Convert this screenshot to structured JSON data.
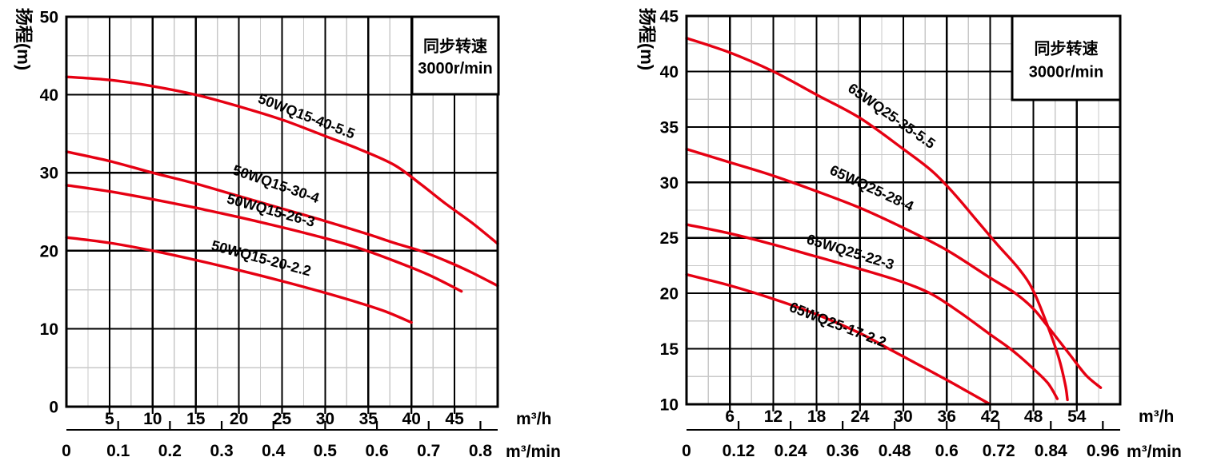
{
  "page": {
    "background": "#ffffff"
  },
  "colors": {
    "curve_red": "#e60012",
    "legend_blue": "#1578ab",
    "grid_minor": "#c8c8c8",
    "grid_major": "#000000",
    "plot_bg": "#ffffff"
  },
  "chart_data": [
    {
      "type": "line",
      "y_axis_title": "扬程(m)",
      "legend_box": {
        "line1": "同步转速",
        "line2": "3000r/min"
      },
      "x_unit": "m³/h",
      "x2_unit": "m³/min",
      "x_range": [
        0,
        50
      ],
      "y_range": [
        0,
        50
      ],
      "grid": {
        "x_major": 5,
        "x_minor": 2.5,
        "y_major": 10,
        "y_minor": 5,
        "grid_on": true
      },
      "x_tick_labels": [
        5,
        10,
        15,
        20,
        25,
        30,
        35,
        40,
        45
      ],
      "y_tick_labels": [
        50,
        40,
        30,
        20,
        10,
        0
      ],
      "x2_tick_labels": [
        "0",
        "0.1",
        "0.2",
        "0.3",
        "0.4",
        "0.5",
        "0.6",
        "0.7",
        "0.8"
      ],
      "x2_to_x_factor": 60,
      "series": [
        {
          "name": "50WQ15-40-5.5",
          "points": [
            [
              0,
              42.3
            ],
            [
              5,
              41.9
            ],
            [
              10,
              41.1
            ],
            [
              15,
              40
            ],
            [
              20,
              38.5
            ],
            [
              25,
              36.8
            ],
            [
              30,
              34.7
            ],
            [
              34,
              33
            ],
            [
              38,
              31
            ],
            [
              41,
              28.6
            ],
            [
              44,
              26
            ],
            [
              47,
              23.6
            ],
            [
              50,
              20.9
            ]
          ]
        },
        {
          "name": "50WQ15-30-4",
          "points": [
            [
              0,
              32.7
            ],
            [
              5,
              31.5
            ],
            [
              10,
              30
            ],
            [
              15,
              28.6
            ],
            [
              20,
              27
            ],
            [
              25,
              25.4
            ],
            [
              30,
              23.8
            ],
            [
              35,
              22.1
            ],
            [
              38,
              21
            ],
            [
              41,
              20
            ],
            [
              44,
              18.7
            ],
            [
              47,
              17.2
            ],
            [
              50,
              15.5
            ]
          ]
        },
        {
          "name": "50WQ15-26-3",
          "points": [
            [
              0,
              28.4
            ],
            [
              5,
              27.6
            ],
            [
              10,
              26.6
            ],
            [
              15,
              25.5
            ],
            [
              20,
              24.3
            ],
            [
              25,
              23
            ],
            [
              30,
              21.6
            ],
            [
              34,
              20.3
            ],
            [
              38,
              18.7
            ],
            [
              42,
              16.9
            ],
            [
              45.8,
              14.8
            ]
          ]
        },
        {
          "name": "50WQ15-20-2.2",
          "points": [
            [
              0,
              21.7
            ],
            [
              5,
              21
            ],
            [
              10,
              20
            ],
            [
              15,
              18.8
            ],
            [
              20,
              17.5
            ],
            [
              25,
              16.1
            ],
            [
              30,
              14.6
            ],
            [
              34,
              13.3
            ],
            [
              37,
              12.2
            ],
            [
              40,
              10.8
            ]
          ]
        }
      ]
    },
    {
      "type": "line",
      "y_axis_title": "扬程(m)",
      "legend_box": {
        "line1": "同步转速",
        "line2": "3000r/min"
      },
      "x_unit": "m³/h",
      "x2_unit": "m³/min",
      "x_range": [
        0,
        60
      ],
      "y_range": [
        10,
        45
      ],
      "grid": {
        "x_major": 6,
        "x_minor": 3,
        "y_major": 5,
        "y_minor": 2.5,
        "grid_on": true
      },
      "x_tick_labels": [
        6,
        12,
        18,
        24,
        30,
        36,
        42,
        48,
        54
      ],
      "y_tick_labels": [
        45,
        40,
        35,
        30,
        25,
        20,
        15,
        10
      ],
      "x2_tick_labels": [
        "0",
        "0.12",
        "0.24",
        "0.36",
        "0.48",
        "0.6",
        "0.72",
        "0.84",
        "0.96"
      ],
      "x2_to_x_factor": 60,
      "series": [
        {
          "name": "65WQ25-35-5.5",
          "points": [
            [
              0,
              43
            ],
            [
              6,
              41.7
            ],
            [
              12,
              40
            ],
            [
              18,
              37.9
            ],
            [
              24,
              35.8
            ],
            [
              30,
              33
            ],
            [
              34,
              31
            ],
            [
              37,
              29
            ],
            [
              40,
              26.7
            ],
            [
              43,
              24.4
            ],
            [
              46,
              22.2
            ],
            [
              48,
              20.2
            ],
            [
              50,
              17
            ],
            [
              51.5,
              14.2
            ],
            [
              52.4,
              11.8
            ],
            [
              52.7,
              10.4
            ]
          ]
        },
        {
          "name": "65WQ25-28-4",
          "points": [
            [
              0,
              33
            ],
            [
              6,
              31.8
            ],
            [
              12,
              30.6
            ],
            [
              18,
              29.2
            ],
            [
              24,
              27.7
            ],
            [
              30,
              25.9
            ],
            [
              36,
              23.9
            ],
            [
              42,
              21.4
            ],
            [
              45.5,
              20
            ],
            [
              48,
              18.6
            ],
            [
              50,
              17
            ],
            [
              53,
              14.5
            ],
            [
              55.3,
              12.6
            ],
            [
              57.3,
              11.5
            ]
          ]
        },
        {
          "name": "65WQ25-22-3",
          "points": [
            [
              0,
              26.2
            ],
            [
              6,
              25.4
            ],
            [
              12,
              24.4
            ],
            [
              18,
              23.3
            ],
            [
              24,
              22.2
            ],
            [
              30,
              21
            ],
            [
              34,
              19.9
            ],
            [
              38,
              18.2
            ],
            [
              42,
              16.3
            ],
            [
              45,
              14.9
            ],
            [
              48,
              13.2
            ],
            [
              50,
              11.9
            ],
            [
              51.3,
              10.5
            ]
          ]
        },
        {
          "name": "65WQ25-17-2.2",
          "points": [
            [
              0,
              21.7
            ],
            [
              6,
              20.7
            ],
            [
              12,
              19.5
            ],
            [
              18,
              18.1
            ],
            [
              24,
              16.4
            ],
            [
              28,
              15
            ],
            [
              32,
              13.6
            ],
            [
              36,
              12.2
            ],
            [
              39,
              11.1
            ],
            [
              42,
              10
            ]
          ]
        }
      ]
    }
  ]
}
